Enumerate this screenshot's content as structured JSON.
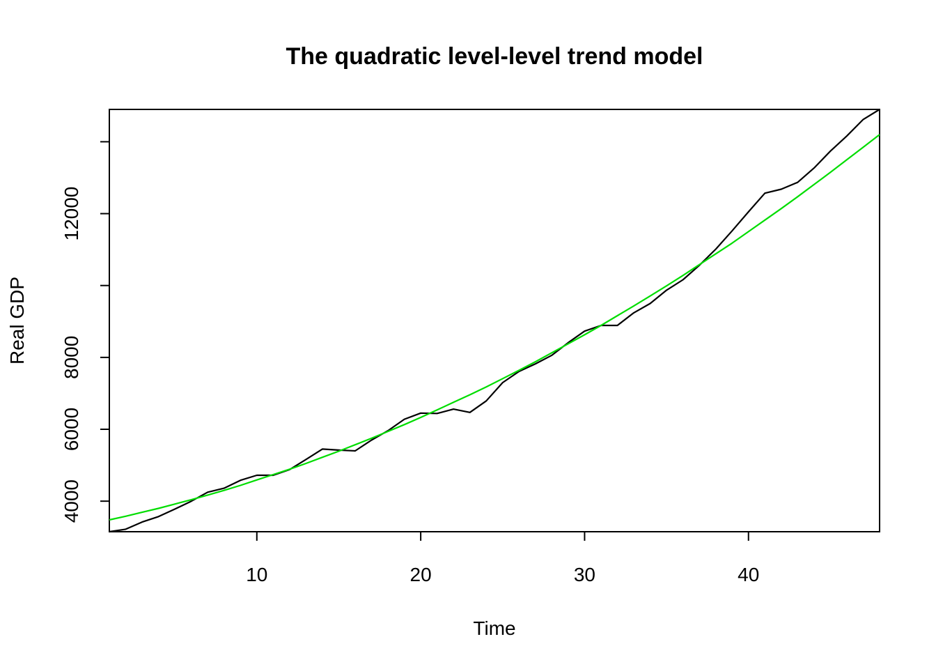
{
  "chart_data": {
    "type": "line",
    "title": "The quadratic level-level trend model",
    "xlabel": "Time",
    "ylabel": "Real GDP",
    "xlim": [
      1,
      48
    ],
    "ylim": [
      3150,
      14900
    ],
    "x_ticks": [
      10,
      20,
      30,
      40
    ],
    "y_ticks": [
      4000,
      6000,
      8000,
      10000,
      12000,
      14000
    ],
    "y_tick_labels_shown": [
      4000,
      6000,
      8000,
      12000
    ],
    "grid": false,
    "legend": "none",
    "series": [
      {
        "color": "#000000",
        "x": [
          1,
          2,
          3,
          4,
          5,
          6,
          7,
          8,
          9,
          10,
          11,
          12,
          13,
          14,
          15,
          16,
          17,
          18,
          19,
          20,
          21,
          22,
          23,
          24,
          25,
          26,
          27,
          28,
          29,
          30,
          31,
          32,
          33,
          34,
          35,
          36,
          37,
          38,
          39,
          40,
          41,
          42,
          43,
          44,
          45,
          46,
          47,
          48
        ],
        "values": [
          3150,
          3220,
          3420,
          3570,
          3780,
          4000,
          4250,
          4360,
          4580,
          4720,
          4720,
          4880,
          5160,
          5450,
          5420,
          5400,
          5700,
          5960,
          6280,
          6450,
          6440,
          6560,
          6470,
          6790,
          7300,
          7610,
          7820,
          8060,
          8410,
          8730,
          8890,
          8890,
          9240,
          9500,
          9870,
          10160,
          10560,
          11010,
          11520,
          12050,
          12570,
          12680,
          12870,
          13270,
          13740,
          14160,
          14620,
          14900
        ]
      },
      {
        "color": "#00dd00",
        "x": [
          1,
          2,
          3,
          4,
          5,
          6,
          7,
          8,
          9,
          10,
          11,
          12,
          13,
          14,
          15,
          16,
          17,
          18,
          19,
          20,
          21,
          22,
          23,
          24,
          25,
          26,
          27,
          28,
          29,
          30,
          31,
          32,
          33,
          34,
          35,
          36,
          37,
          38,
          39,
          40,
          41,
          42,
          43,
          44,
          45,
          46,
          47,
          48
        ],
        "values": [
          3480,
          3580,
          3690,
          3800,
          3920,
          4040,
          4170,
          4300,
          4440,
          4590,
          4740,
          4890,
          5050,
          5220,
          5390,
          5570,
          5750,
          5940,
          6130,
          6330,
          6540,
          6750,
          6960,
          7180,
          7410,
          7640,
          7880,
          8130,
          8380,
          8630,
          8890,
          9160,
          9430,
          9710,
          9990,
          10280,
          10580,
          10880,
          11180,
          11500,
          11820,
          12140,
          12470,
          12810,
          13150,
          13500,
          13850,
          14200
        ]
      }
    ]
  }
}
